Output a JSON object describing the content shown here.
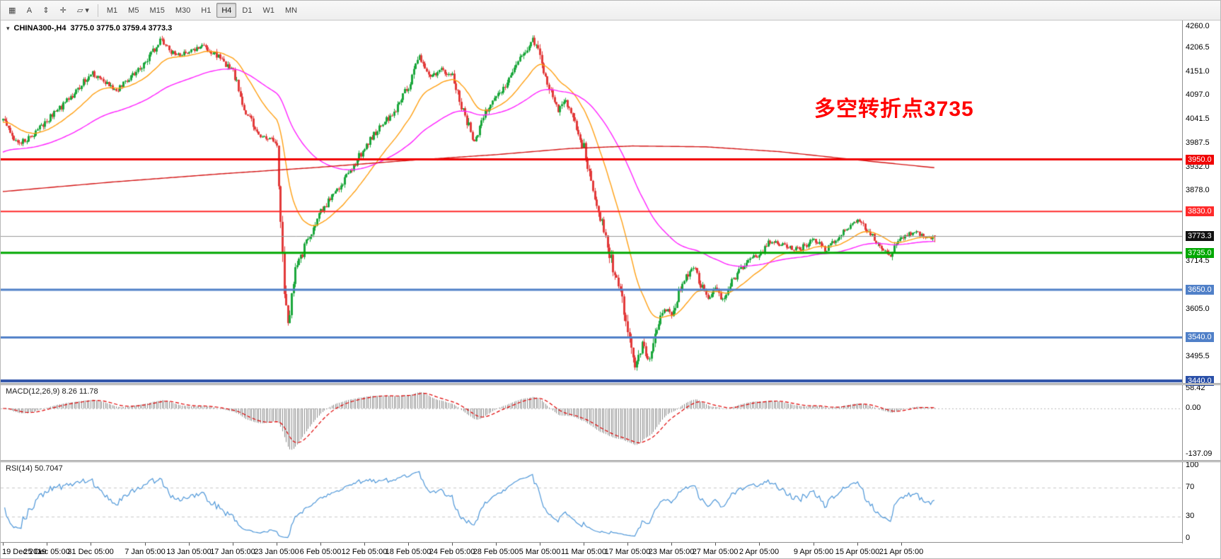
{
  "toolbar": {
    "left_buttons": [
      {
        "name": "charts-list-button",
        "glyph": "▦"
      },
      {
        "name": "annotate-text-button",
        "glyph": "A"
      },
      {
        "name": "scale-button",
        "glyph": "⇕"
      },
      {
        "name": "crosshair-button",
        "glyph": "✛"
      },
      {
        "name": "draw-tools-dropdown",
        "glyph": "▱",
        "caret": "▾"
      }
    ],
    "timeframes": [
      {
        "label": "M1",
        "active": false
      },
      {
        "label": "M5",
        "active": false
      },
      {
        "label": "M15",
        "active": false
      },
      {
        "label": "M30",
        "active": false
      },
      {
        "label": "H1",
        "active": false
      },
      {
        "label": "H4",
        "active": true
      },
      {
        "label": "D1",
        "active": false
      },
      {
        "label": "W1",
        "active": false
      },
      {
        "label": "MN",
        "active": false
      }
    ]
  },
  "main_chart": {
    "symbol_line": {
      "collapse_glyph": "▾",
      "symbol": "CHINA300-,H4",
      "ohlc": "3775.0 3775.0 3759.4 3773.3"
    },
    "annotation": {
      "text": "多空转折点3735",
      "color": "#FF0000"
    }
  },
  "chart_data": {
    "type": "candlestick",
    "symbol": "CHINA300-",
    "timeframe": "H4",
    "current_ohlc": {
      "open": 3775.0,
      "high": 3775.0,
      "low": 3759.4,
      "close": 3773.3
    },
    "price_range": [
      3435,
      4270
    ],
    "y_ticks": [
      4260.0,
      4206.5,
      4151.0,
      4097.0,
      4041.5,
      3987.5,
      3932.0,
      3878.0,
      3714.5,
      3605.0,
      3495.5
    ],
    "hlines": [
      {
        "value": 3950.0,
        "label": "3950.0",
        "color": "#F00000",
        "width": 3
      },
      {
        "value": 3830.0,
        "label": "3830.0",
        "color": "#FF2A2A",
        "width": 2
      },
      {
        "value": 3735.0,
        "label": "3735.0",
        "color": "#00A800",
        "width": 3
      },
      {
        "value": 3650.0,
        "label": "3650.0",
        "color": "#5080C8",
        "width": 3
      },
      {
        "value": 3540.0,
        "label": "3540.0",
        "color": "#5080C8",
        "width": 3
      },
      {
        "value": 3440.0,
        "label": "3440.0",
        "color": "#2B50A8",
        "width": 4
      }
    ],
    "current_price": {
      "value": 3773.3,
      "label": "3773.3",
      "line_color": "#999999",
      "badge_bg": "#111111"
    },
    "num_candles": 511,
    "visible_fraction": 0.79,
    "close_keypoints": [
      [
        0,
        4040
      ],
      [
        6,
        4000
      ],
      [
        10,
        3988
      ],
      [
        16,
        4006
      ],
      [
        24,
        4040
      ],
      [
        32,
        4072
      ],
      [
        40,
        4106
      ],
      [
        48,
        4150
      ],
      [
        56,
        4126
      ],
      [
        62,
        4110
      ],
      [
        70,
        4140
      ],
      [
        78,
        4172
      ],
      [
        86,
        4225
      ],
      [
        94,
        4190
      ],
      [
        102,
        4196
      ],
      [
        110,
        4210
      ],
      [
        118,
        4186
      ],
      [
        126,
        4150
      ],
      [
        132,
        4070
      ],
      [
        140,
        4005
      ],
      [
        148,
        3992
      ],
      [
        150,
        3985
      ],
      [
        152,
        3790
      ],
      [
        154,
        3650
      ],
      [
        156,
        3575
      ],
      [
        160,
        3690
      ],
      [
        166,
        3758
      ],
      [
        174,
        3830
      ],
      [
        182,
        3876
      ],
      [
        190,
        3920
      ],
      [
        198,
        3980
      ],
      [
        206,
        4022
      ],
      [
        214,
        4060
      ],
      [
        222,
        4120
      ],
      [
        228,
        4186
      ],
      [
        234,
        4140
      ],
      [
        240,
        4156
      ],
      [
        246,
        4142
      ],
      [
        252,
        4060
      ],
      [
        258,
        3992
      ],
      [
        264,
        4058
      ],
      [
        270,
        4090
      ],
      [
        278,
        4140
      ],
      [
        286,
        4202
      ],
      [
        290,
        4228
      ],
      [
        294,
        4186
      ],
      [
        300,
        4100
      ],
      [
        304,
        4062
      ],
      [
        308,
        4090
      ],
      [
        312,
        4040
      ],
      [
        318,
        3976
      ],
      [
        322,
        3890
      ],
      [
        326,
        3832
      ],
      [
        330,
        3770
      ],
      [
        334,
        3700
      ],
      [
        338,
        3645
      ],
      [
        342,
        3560
      ],
      [
        346,
        3473
      ],
      [
        350,
        3526
      ],
      [
        354,
        3486
      ],
      [
        358,
        3560
      ],
      [
        362,
        3610
      ],
      [
        366,
        3586
      ],
      [
        370,
        3640
      ],
      [
        374,
        3680
      ],
      [
        378,
        3702
      ],
      [
        382,
        3660
      ],
      [
        386,
        3632
      ],
      [
        390,
        3656
      ],
      [
        394,
        3626
      ],
      [
        398,
        3660
      ],
      [
        404,
        3700
      ],
      [
        410,
        3722
      ],
      [
        414,
        3732
      ],
      [
        420,
        3762
      ],
      [
        428,
        3750
      ],
      [
        436,
        3742
      ],
      [
        444,
        3768
      ],
      [
        450,
        3740
      ],
      [
        456,
        3768
      ],
      [
        462,
        3792
      ],
      [
        468,
        3812
      ],
      [
        474,
        3782
      ],
      [
        480,
        3752
      ],
      [
        486,
        3730
      ],
      [
        492,
        3772
      ],
      [
        500,
        3782
      ],
      [
        506,
        3770
      ],
      [
        510,
        3773.3
      ]
    ],
    "ma_lines": [
      {
        "name": "ma-fast-orange",
        "type": "ema",
        "period": 26,
        "seed": 4035,
        "color": "#FFA013"
      },
      {
        "name": "ma-mid-magenta",
        "type": "ema",
        "period": 85,
        "seed": 3965,
        "color": "#FF22FF"
      },
      {
        "name": "ma-slow-red",
        "type": "path",
        "color": "#D41616",
        "keypoints": [
          [
            0,
            3876
          ],
          [
            60,
            3898
          ],
          [
            120,
            3917
          ],
          [
            170,
            3931
          ],
          [
            220,
            3947
          ],
          [
            270,
            3961
          ],
          [
            310,
            3975
          ],
          [
            345,
            3981
          ],
          [
            385,
            3979
          ],
          [
            425,
            3968
          ],
          [
            465,
            3950
          ],
          [
            510,
            3931
          ]
        ]
      }
    ],
    "x_axis": {
      "labels": [
        [
          "19 Dec 2019",
          0
        ],
        [
          "25 Dec 05:00",
          24
        ],
        [
          "31 Dec 05:00",
          48
        ],
        [
          "7 Jan 05:00",
          78
        ],
        [
          "13 Jan 05:00",
          102
        ],
        [
          "17 Jan 05:00",
          126
        ],
        [
          "23 Jan 05:00",
          150
        ],
        [
          "6 Feb 05:00",
          174
        ],
        [
          "12 Feb 05:00",
          198
        ],
        [
          "18 Feb 05:00",
          222
        ],
        [
          "24 Feb 05:00",
          246
        ],
        [
          "28 Feb 05:00",
          270
        ],
        [
          "5 Mar 05:00",
          294
        ],
        [
          "11 Mar 05:00",
          318
        ],
        [
          "17 Mar 05:00",
          342
        ],
        [
          "23 Mar 05:00",
          366
        ],
        [
          "27 Mar 05:00",
          390
        ],
        [
          "2 Apr 05:00",
          414
        ],
        [
          "9 Apr 05:00",
          444
        ],
        [
          "15 Apr 05:00",
          468
        ],
        [
          "21 Apr 05:00",
          492
        ]
      ]
    },
    "style": {
      "bull": "#1BA73C",
      "bear": "#E23A3A",
      "background": "#FFFFFF",
      "axis_text": "#000000"
    },
    "indicators": [
      {
        "name": "MACD",
        "label": "MACD(12,26,9) 8.26 11.78",
        "params": [
          12,
          26,
          9
        ],
        "values": [
          8.26,
          11.78
        ],
        "ticks": [
          "58.42",
          "0.00",
          "-137.09"
        ],
        "range": [
          -155,
          70
        ],
        "bar_color": "#8C8C8C",
        "signal_color": "#E00000"
      },
      {
        "name": "RSI",
        "label": "RSI(14) 50.7047",
        "period": 14,
        "value": 50.7047,
        "ticks": [
          "100",
          "70",
          "30",
          "0"
        ],
        "range": [
          -5,
          105
        ],
        "levels": [
          70,
          30
        ],
        "line_color": "#4E97D9"
      }
    ]
  }
}
